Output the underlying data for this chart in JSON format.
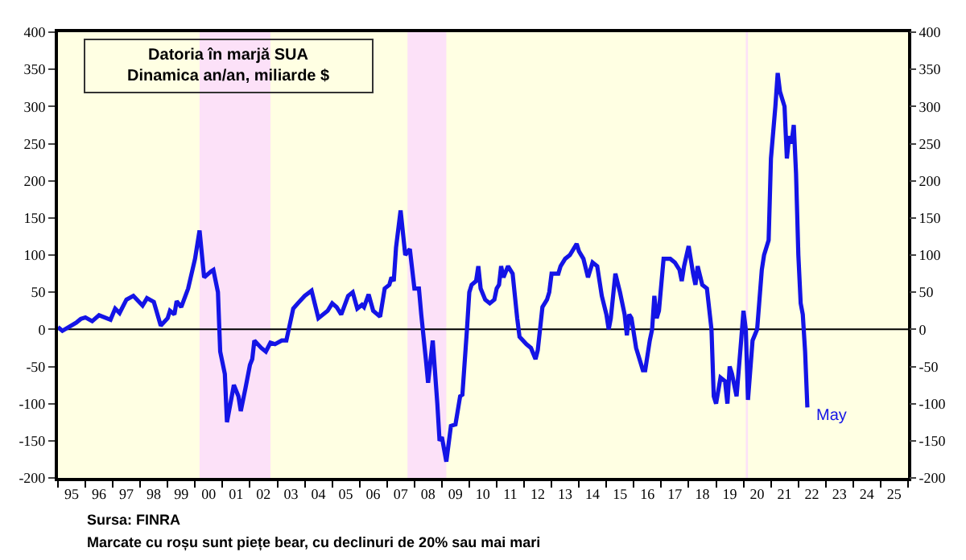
{
  "chart_data": {
    "type": "line",
    "annotations": [
      {
        "text": "May",
        "x": "2022-05",
        "y": -105
      },
      "Sursa: FINRA",
      "Marcate cu roșu sunt piețe bear, cu declinuri de 20% sau mai mari"
    ],
    "title": "Datoria în marjă SUA",
    "subtitle": "Dinamica an/an, miliarde $",
    "series": [
      {
        "color": "#1414e6",
        "x": [
          "1995-01",
          "1995-03",
          "1995-09",
          "1995-11",
          "1996-01",
          "1996-04",
          "1996-07",
          "1996-12",
          "1997-02",
          "1997-04",
          "1997-07",
          "1997-10",
          "1998-02",
          "1998-04",
          "1998-07",
          "1998-10",
          "1999-01",
          "1999-02",
          "1999-04",
          "1999-05",
          "1999-07",
          "1999-10",
          "2000-01",
          "2000-03",
          "2000-05",
          "2000-08",
          "2000-09",
          "2000-11",
          "2000-12",
          "2001-02",
          "2001-03",
          "2001-06",
          "2001-08",
          "2001-09",
          "2001-11",
          "2002-01",
          "2002-02",
          "2002-03",
          "2002-06",
          "2002-08",
          "2002-10",
          "2002-12",
          "2003-03",
          "2003-05",
          "2003-08",
          "2003-10",
          "2004-01",
          "2004-04",
          "2004-07",
          "2004-11",
          "2005-01",
          "2005-03",
          "2005-05",
          "2005-08",
          "2005-10",
          "2005-12",
          "2006-02",
          "2006-03",
          "2006-05",
          "2006-07",
          "2006-10",
          "2006-12",
          "2007-02",
          "2007-03",
          "2007-04",
          "2007-05",
          "2007-07",
          "2007-09",
          "2007-11",
          "2008-01",
          "2008-03",
          "2008-04",
          "2008-06",
          "2008-07",
          "2008-09",
          "2008-11",
          "2008-12",
          "2009-01",
          "2009-03",
          "2009-05",
          "2009-07",
          "2009-09",
          "2009-10",
          "2009-12",
          "2010-01",
          "2010-02",
          "2010-04",
          "2010-05",
          "2010-06",
          "2010-08",
          "2010-10",
          "2010-12",
          "2011-01",
          "2011-02",
          "2011-03",
          "2011-04",
          "2011-06",
          "2011-08",
          "2011-10",
          "2011-11",
          "2012-02",
          "2012-04",
          "2012-06",
          "2012-07",
          "2012-09",
          "2012-11",
          "2012-12",
          "2013-01",
          "2013-04",
          "2013-05",
          "2013-07",
          "2013-09",
          "2013-12",
          "2014-01",
          "2014-03",
          "2014-05",
          "2014-07",
          "2014-09",
          "2014-11",
          "2015-01",
          "2015-02",
          "2015-03",
          "2015-05",
          "2015-07",
          "2015-09",
          "2015-10",
          "2015-11",
          "2015-12",
          "2016-02",
          "2016-05",
          "2016-06",
          "2016-08",
          "2016-09",
          "2016-10",
          "2016-11",
          "2016-12",
          "2017-02",
          "2017-05",
          "2017-07",
          "2017-09",
          "2017-10",
          "2017-11",
          "2018-01",
          "2018-03",
          "2018-04",
          "2018-05",
          "2018-07",
          "2018-09",
          "2018-11",
          "2018-12",
          "2019-01",
          "2019-03",
          "2019-05",
          "2019-06",
          "2019-07",
          "2019-08",
          "2019-10",
          "2019-12",
          "2020-01",
          "2020-02",
          "2020-03",
          "2020-05",
          "2020-07",
          "2020-09",
          "2020-10",
          "2020-12",
          "2021-01",
          "2021-03",
          "2021-04",
          "2021-05",
          "2021-07",
          "2021-08",
          "2021-09",
          "2021-10",
          "2021-11",
          "2021-12",
          "2022-01",
          "2022-02",
          "2022-03",
          "2022-04",
          "2022-05"
        ],
        "values": [
          3,
          -2,
          9,
          14,
          16,
          11,
          19,
          13,
          28,
          22,
          40,
          45,
          32,
          42,
          37,
          5,
          15,
          25,
          20,
          38,
          30,
          55,
          95,
          133,
          70,
          78,
          80,
          50,
          -30,
          -60,
          -125,
          -75,
          -90,
          -110,
          -80,
          -48,
          -40,
          -15,
          -25,
          -30,
          -18,
          -20,
          -15,
          -15,
          28,
          35,
          45,
          52,
          15,
          25,
          35,
          30,
          20,
          45,
          50,
          28,
          33,
          30,
          47,
          25,
          17,
          55,
          60,
          70,
          65,
          110,
          160,
          100,
          108,
          55,
          55,
          20,
          -40,
          -72,
          -15,
          -100,
          -150,
          -145,
          -178,
          -130,
          -128,
          -90,
          -88,
          0,
          50,
          60,
          65,
          85,
          55,
          40,
          35,
          40,
          55,
          60,
          85,
          70,
          85,
          75,
          15,
          -10,
          -20,
          -25,
          -40,
          -28,
          30,
          40,
          50,
          75,
          75,
          85,
          95,
          100,
          115,
          105,
          95,
          70,
          90,
          85,
          45,
          20,
          0,
          15,
          75,
          50,
          20,
          -8,
          20,
          15,
          -25,
          -55,
          -55,
          -15,
          0,
          45,
          15,
          25,
          95,
          95,
          90,
          80,
          65,
          85,
          112,
          75,
          60,
          85,
          60,
          55,
          0,
          -90,
          -100,
          -65,
          -70,
          -100,
          -50,
          -60,
          -90,
          -15,
          25,
          0,
          -95,
          -15,
          0,
          80,
          100,
          120,
          230,
          300,
          345,
          320,
          300,
          230,
          260,
          250,
          275,
          210,
          100,
          35,
          20,
          -30,
          -105
        ]
      }
    ],
    "xlim": [
      "1995-01-01",
      "2026-01-01"
    ],
    "xticks": [
      {
        "value": "1995-07-01",
        "label": "95"
      },
      {
        "value": "1996-07-01",
        "label": "96"
      },
      {
        "value": "1997-07-01",
        "label": "97"
      },
      {
        "value": "1998-07-01",
        "label": "98"
      },
      {
        "value": "1999-07-01",
        "label": "99"
      },
      {
        "value": "2000-07-01",
        "label": "00"
      },
      {
        "value": "2001-07-01",
        "label": "01"
      },
      {
        "value": "2002-07-01",
        "label": "02"
      },
      {
        "value": "2003-07-01",
        "label": "03"
      },
      {
        "value": "2004-07-01",
        "label": "04"
      },
      {
        "value": "2005-07-01",
        "label": "05"
      },
      {
        "value": "2006-07-01",
        "label": "06"
      },
      {
        "value": "2007-07-01",
        "label": "07"
      },
      {
        "value": "2008-07-01",
        "label": "08"
      },
      {
        "value": "2009-07-01",
        "label": "09"
      },
      {
        "value": "2010-07-01",
        "label": "10"
      },
      {
        "value": "2011-07-01",
        "label": "11"
      },
      {
        "value": "2012-07-01",
        "label": "12"
      },
      {
        "value": "2013-07-01",
        "label": "13"
      },
      {
        "value": "2014-07-01",
        "label": "14"
      },
      {
        "value": "2015-07-01",
        "label": "15"
      },
      {
        "value": "2016-07-01",
        "label": "16"
      },
      {
        "value": "2017-07-01",
        "label": "17"
      },
      {
        "value": "2018-07-01",
        "label": "18"
      },
      {
        "value": "2019-07-01",
        "label": "19"
      },
      {
        "value": "2020-07-01",
        "label": "20"
      },
      {
        "value": "2021-07-01",
        "label": "21"
      },
      {
        "value": "2022-07-01",
        "label": "22"
      },
      {
        "value": "2023-07-01",
        "label": "23"
      },
      {
        "value": "2024-07-01",
        "label": "24"
      },
      {
        "value": "2025-07-01",
        "label": "25"
      },
      {
        "value": "1995",
        "label": null
      },
      {
        "value": "1996",
        "label": null
      },
      {
        "value": "1997",
        "label": null
      },
      {
        "value": "1998",
        "label": null
      },
      {
        "value": "1999",
        "label": null
      },
      {
        "value": "2000",
        "label": null
      },
      {
        "value": "2001",
        "label": null
      },
      {
        "value": "2002",
        "label": null
      },
      {
        "value": "2003",
        "label": null
      },
      {
        "value": "2004",
        "label": null
      },
      {
        "value": "2005",
        "label": null
      },
      {
        "value": "2006",
        "label": null
      },
      {
        "value": "2007",
        "label": null
      },
      {
        "value": "2008",
        "label": null
      },
      {
        "value": "2009",
        "label": null
      },
      {
        "value": "2010",
        "label": null
      },
      {
        "value": "2011",
        "label": null
      },
      {
        "value": "2012",
        "label": null
      },
      {
        "value": "2013",
        "label": null
      },
      {
        "value": "2014",
        "label": null
      },
      {
        "value": "2015",
        "label": null
      },
      {
        "value": "2016",
        "label": null
      },
      {
        "value": "2017",
        "label": null
      },
      {
        "value": "2018",
        "label": null
      },
      {
        "value": "2019",
        "label": null
      },
      {
        "value": "2020",
        "label": null
      },
      {
        "value": "2021",
        "label": null
      },
      {
        "value": "2022",
        "label": null
      },
      {
        "value": "2023",
        "label": null
      },
      {
        "value": "2024",
        "label": null
      },
      {
        "value": "2025",
        "label": null
      },
      {
        "value": "2026",
        "label": null
      }
    ],
    "ylim": [
      -200,
      400
    ],
    "yticks": [
      -200,
      -150,
      -100,
      -50,
      0,
      50,
      100,
      150,
      200,
      250,
      300,
      350,
      400
    ],
    "y2lim": [
      -200,
      400
    ],
    "y2ticks": [
      -200,
      -150,
      -100,
      -50,
      0,
      50,
      100,
      150,
      200,
      250,
      300,
      350,
      400
    ],
    "bands": [
      {
        "axis": "x",
        "from": "2000-03",
        "to": "2002-10",
        "color": "#fce1f8"
      },
      {
        "axis": "x",
        "from": "2007-10",
        "to": "2009-03",
        "color": "#fce1f8"
      },
      {
        "axis": "x",
        "from": "2020-02",
        "to": "2020-03",
        "color": "#fce1f8"
      }
    ],
    "ref_lines": [
      {
        "axis": "y",
        "value": 0,
        "color": "#000000"
      }
    ],
    "grid": false,
    "marker": "none",
    "line_style": "solid"
  }
}
